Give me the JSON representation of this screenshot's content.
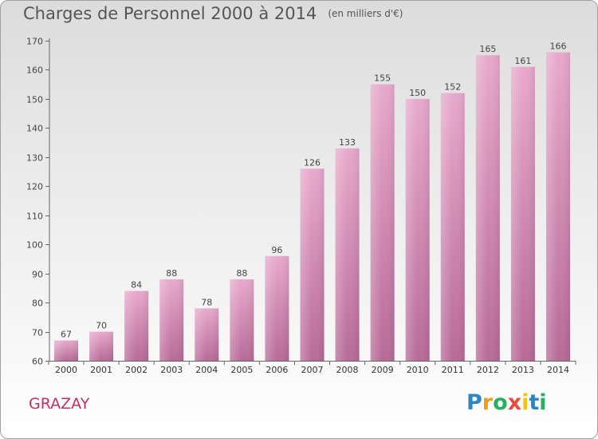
{
  "chart_data": {
    "type": "bar",
    "title": "Charges de Personnel 2000 à 2014",
    "subtitle": "(en milliers d'€)",
    "categories": [
      "2000",
      "2001",
      "2002",
      "2003",
      "2004",
      "2005",
      "2006",
      "2007",
      "2008",
      "2009",
      "2010",
      "2011",
      "2012",
      "2013",
      "2014"
    ],
    "values": [
      67,
      70,
      84,
      88,
      78,
      88,
      96,
      126,
      133,
      155,
      150,
      152,
      165,
      161,
      166
    ],
    "ylim": [
      60,
      170
    ],
    "yticks": [
      60,
      70,
      80,
      90,
      100,
      110,
      120,
      130,
      140,
      150,
      160,
      170
    ],
    "grid": false,
    "bar_color": "#cc79a7"
  },
  "place_name": "GRAZAY",
  "logo": {
    "letters": [
      "P",
      "r",
      "o",
      "x",
      "i",
      "t",
      "i"
    ],
    "colors": [
      "#2e86c1",
      "#f39c12",
      "#27ae60",
      "#e74c3c",
      "#f1c40f",
      "#2e86c1",
      "#27ae60"
    ]
  }
}
